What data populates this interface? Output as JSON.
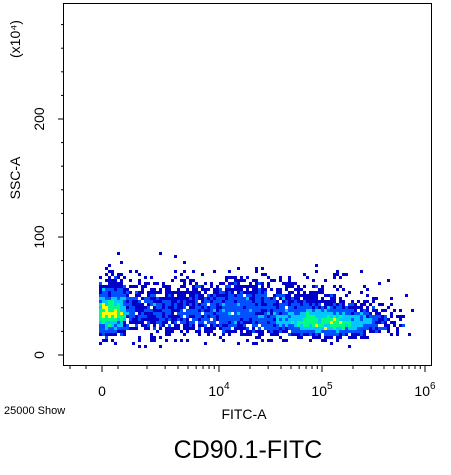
{
  "chart_data": {
    "type": "scatter",
    "title": "CD90.1-FITC",
    "xlabel": "FITC-A",
    "ylabel": "SSC-A",
    "y_multiplier_label": "(x10⁴)",
    "event_count_label": "25000 Show",
    "x_scale": "biexponential",
    "y_scale": "linear",
    "ylim": [
      0,
      300
    ],
    "y_ticks": [
      {
        "value": 0,
        "label": "0"
      },
      {
        "value": 100,
        "label": "100"
      },
      {
        "value": 200,
        "label": "200"
      }
    ],
    "x_ticks": [
      {
        "value": 0,
        "base": "0",
        "exp": ""
      },
      {
        "value": 10000,
        "base": "10",
        "exp": "4"
      },
      {
        "value": 100000,
        "base": "10",
        "exp": "5"
      },
      {
        "value": 1000000,
        "base": "10",
        "exp": "6"
      }
    ],
    "grid": false,
    "legend": "none",
    "density_colormap": [
      "#0000c8",
      "#0050ff",
      "#00c8ff",
      "#00ff80",
      "#ffff00"
    ],
    "populations": [
      {
        "x_log_center": 2.5,
        "x_spread": 0.35,
        "y_center": 36,
        "y_spread": 11,
        "weight": 0.35
      },
      {
        "x_log_center": 5.05,
        "x_spread": 0.25,
        "y_center": 28,
        "y_spread": 7,
        "weight": 0.3
      },
      {
        "x_log_center": 4.0,
        "x_spread": 0.6,
        "y_center": 38,
        "y_spread": 14,
        "weight": 0.35
      }
    ]
  }
}
